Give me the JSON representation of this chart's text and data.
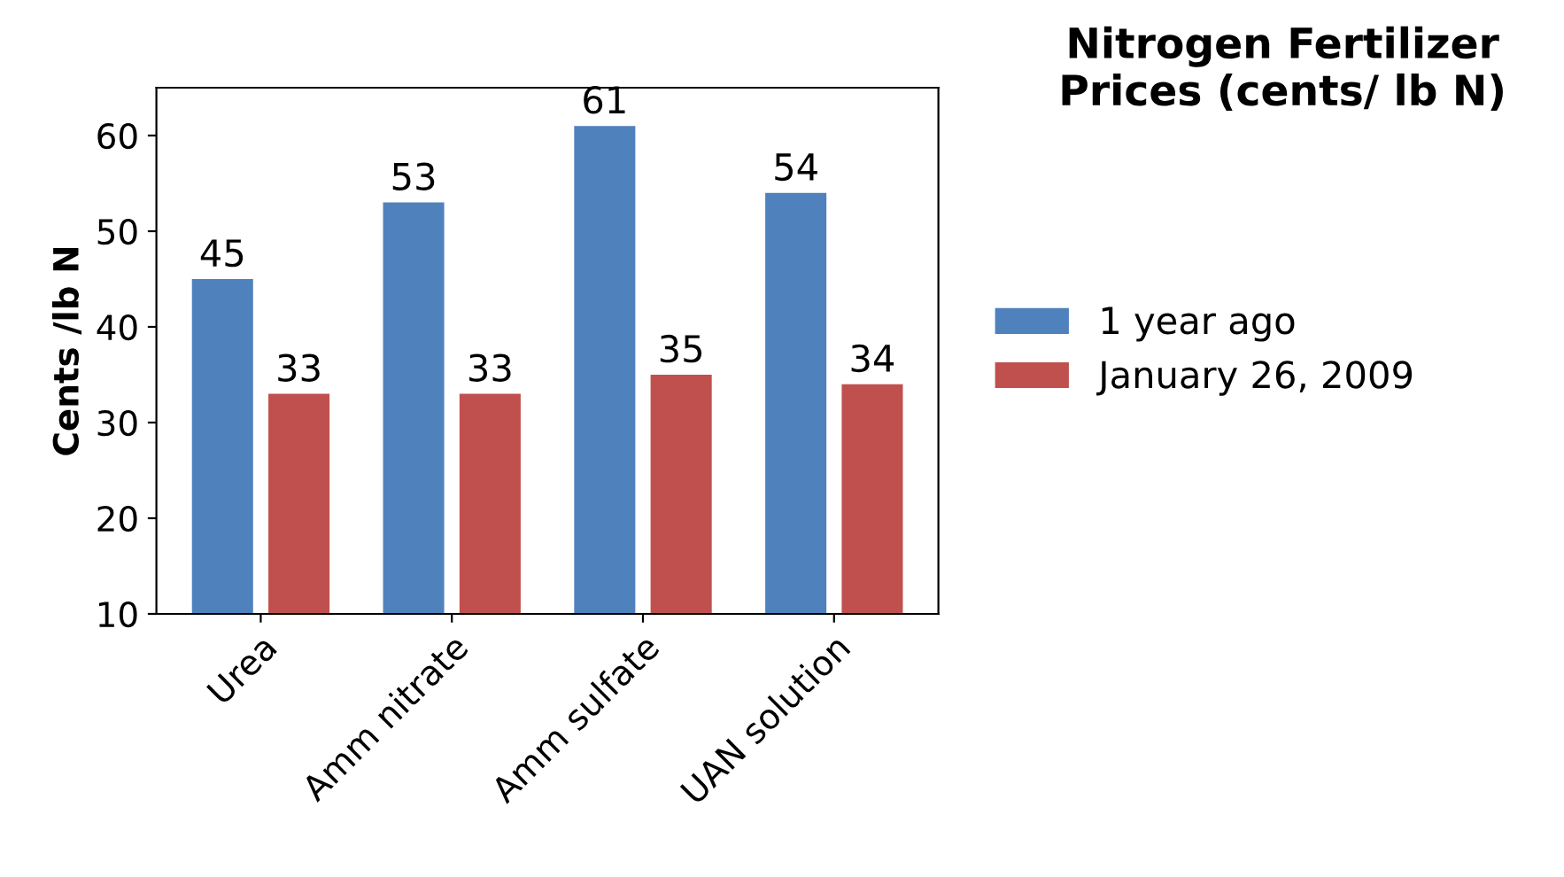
{
  "chart_data": {
    "type": "bar",
    "title": "Nitrogen Fertilizer Prices (cents/ lb N)",
    "ylabel": "Cents /lb N",
    "categories": [
      "Urea",
      "Amm nitrate",
      "Amm sulfate",
      "UAN solution"
    ],
    "series": [
      {
        "name": "1 year ago",
        "color": "#4f81bd",
        "values": [
          45,
          53,
          61,
          54
        ]
      },
      {
        "name": "January 26, 2009",
        "color": "#c0504d",
        "values": [
          33,
          33,
          35,
          34
        ]
      }
    ],
    "ylim": [
      10,
      65
    ],
    "yticks": [
      10,
      20,
      30,
      40,
      50,
      60
    ],
    "data_labels": true,
    "grid": false,
    "legend": "right"
  }
}
